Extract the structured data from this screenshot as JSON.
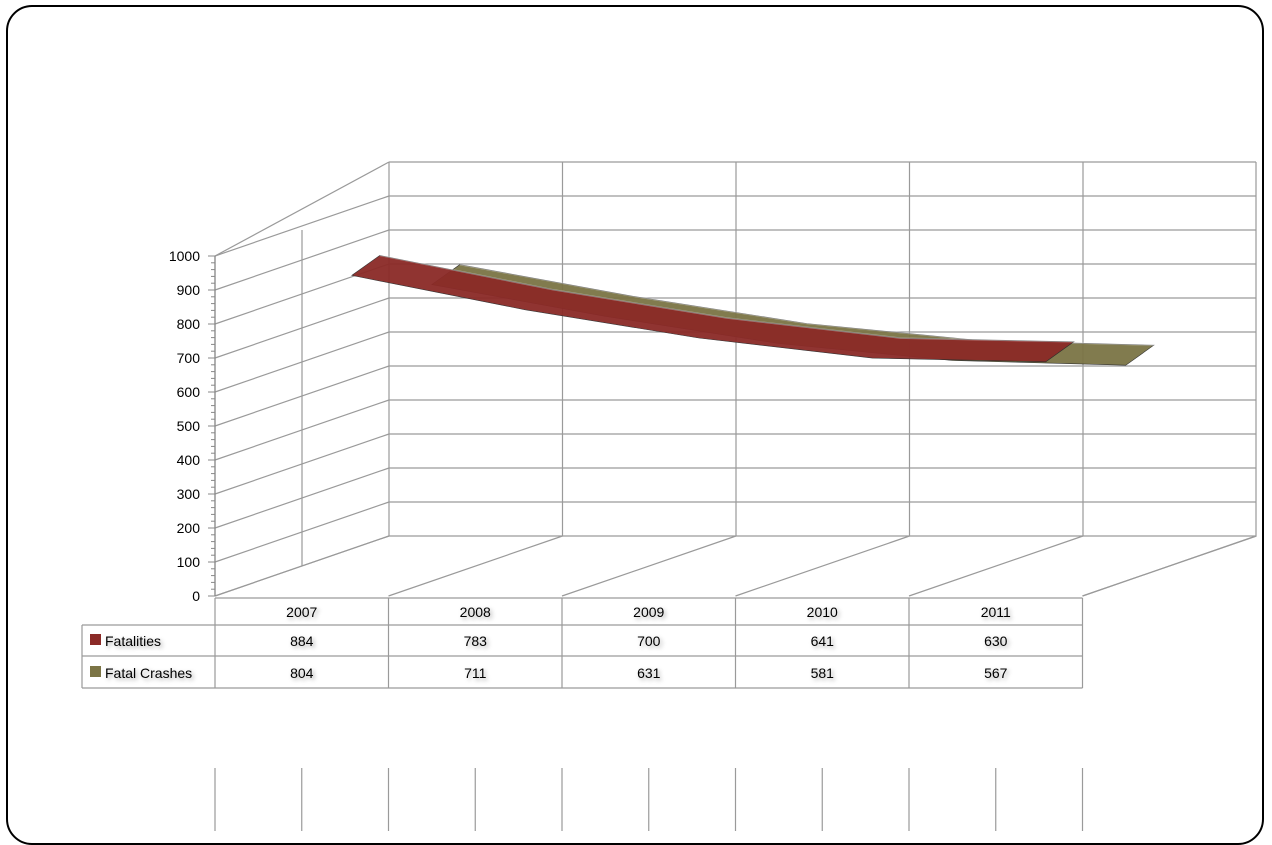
{
  "chart_data": {
    "type": "area",
    "style": "3d-ribbon-with-data-table",
    "categories": [
      "2007",
      "2008",
      "2009",
      "2010",
      "2011"
    ],
    "series": [
      {
        "name": "Fatalities",
        "values": [
          884,
          783,
          700,
          641,
          630
        ],
        "color": "#8b2a27"
      },
      {
        "name": "Fatal Crashes",
        "values": [
          804,
          711,
          631,
          581,
          567
        ],
        "color": "#7b7445"
      }
    ],
    "yticks": [
      "0",
      "100",
      "200",
      "300",
      "400",
      "500",
      "600",
      "700",
      "800",
      "900",
      "1000"
    ],
    "ylim": [
      0,
      1000
    ],
    "grid": true,
    "legend": "data-table"
  }
}
